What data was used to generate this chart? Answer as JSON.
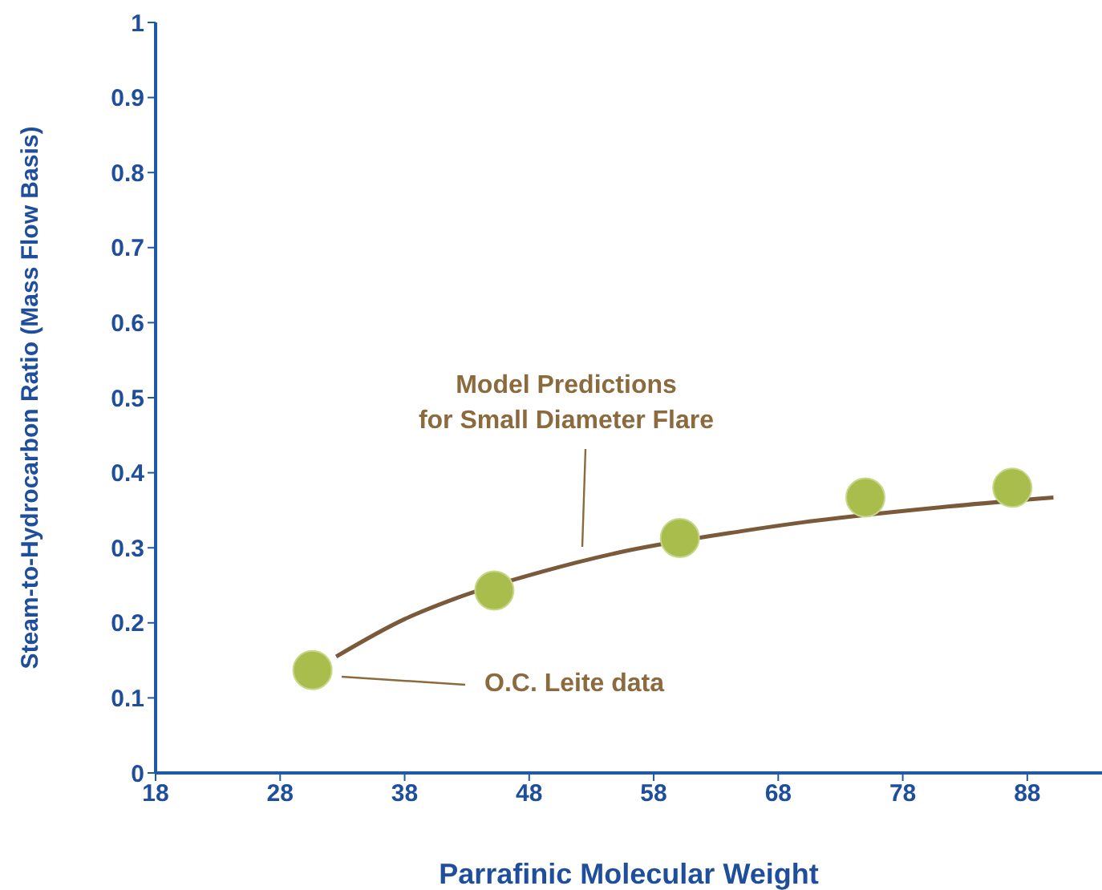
{
  "chart_data": {
    "type": "scatter",
    "xlabel": "Parrafinic Molecular Weight",
    "ylabel": "Steam-to-Hydrocarbon Ratio (Mass Flow Basis)",
    "xlim": [
      18,
      94
    ],
    "xticks": [
      18,
      28,
      38,
      48,
      58,
      68,
      78,
      88
    ],
    "ylim": [
      0,
      1
    ],
    "yticks": [
      0,
      0.1,
      0.2,
      0.3,
      0.4,
      0.5,
      0.6,
      0.7,
      0.8,
      0.9,
      1
    ],
    "grid": false,
    "marker": "circle",
    "series": [
      {
        "color": "#a8bd4c",
        "x": [
          30.6,
          45.2,
          60.1,
          75.0,
          86.8
        ],
        "values": [
          0.137,
          0.243,
          0.313,
          0.367,
          0.38
        ]
      },
      {
        "type": "line",
        "color": "#7a5a3a",
        "marker": "none",
        "x": [
          32.5,
          38,
          42,
          49,
          55,
          65,
          70,
          81,
          90.1
        ],
        "values": [
          0.155,
          0.205,
          0.232,
          0.268,
          0.293,
          0.322,
          0.334,
          0.354,
          0.367
        ]
      }
    ],
    "annotations": [
      "Model Predictions\nfor Small Diameter Flare",
      "O.C. Leite data"
    ]
  }
}
